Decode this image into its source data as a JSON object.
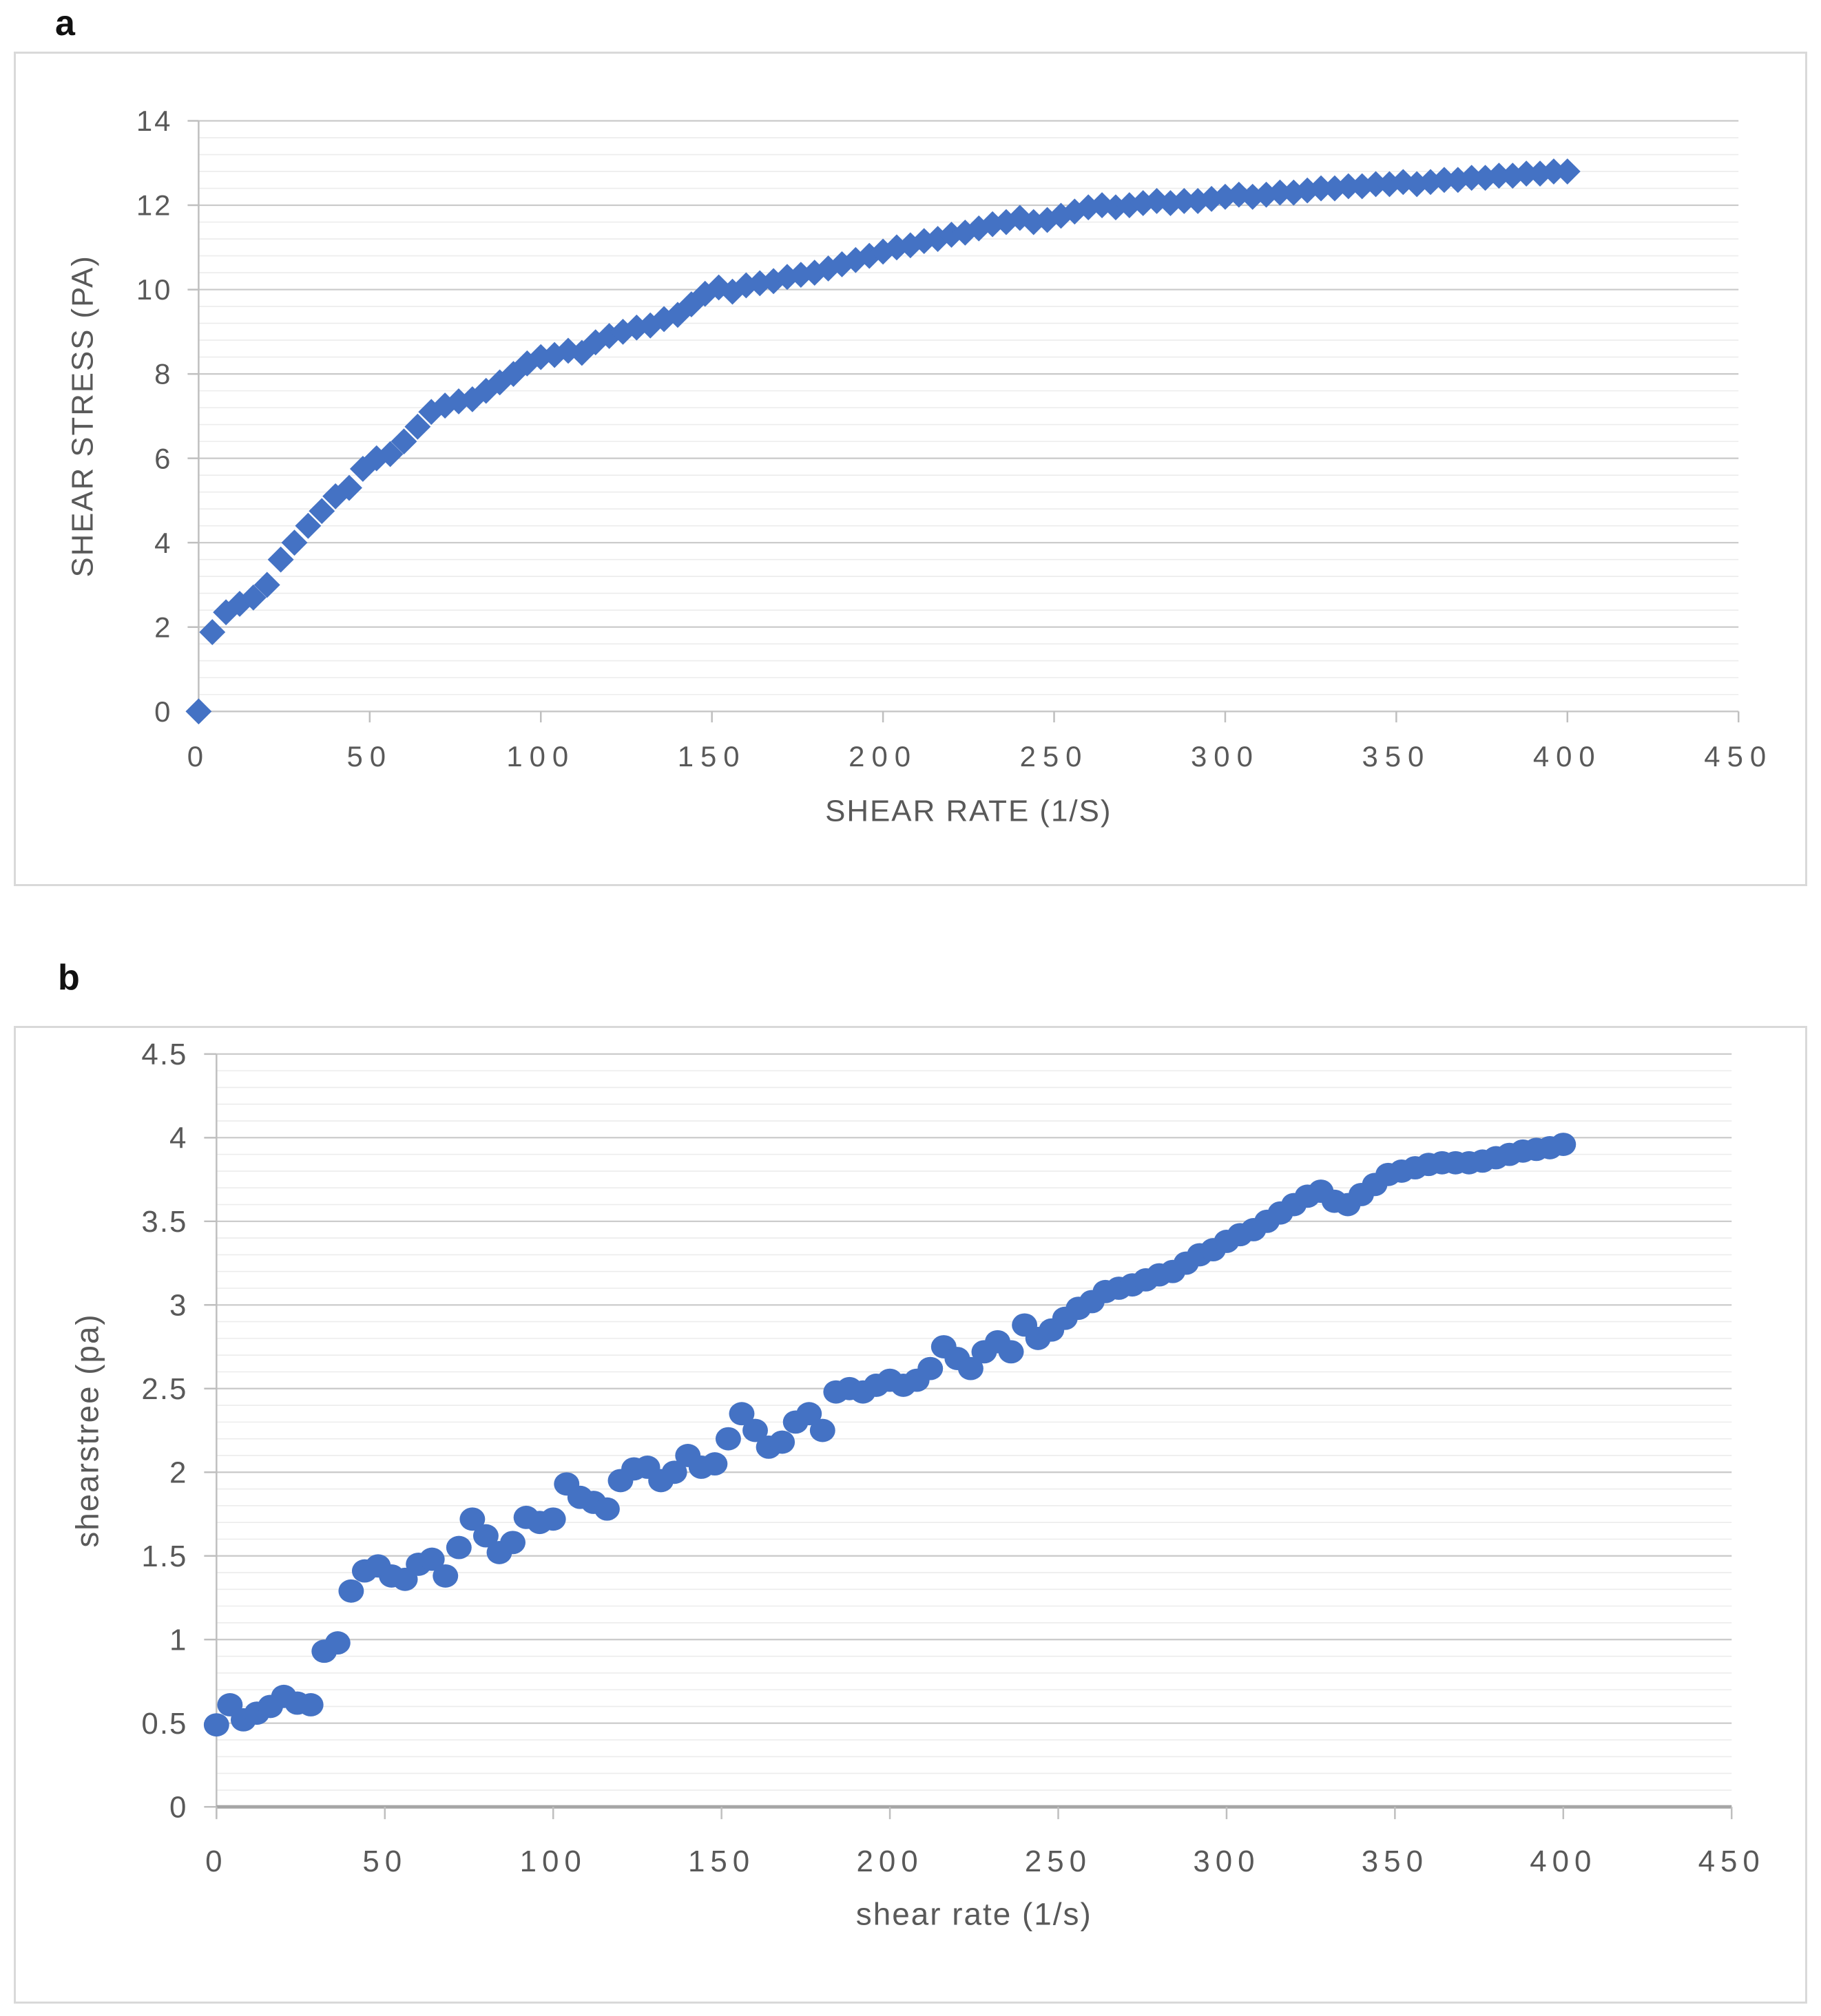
{
  "page": {
    "background": "#ffffff"
  },
  "figures": [
    {
      "panel_label": "a"
    },
    {
      "panel_label": "b"
    }
  ],
  "colors": {
    "marker_blue": "#4472C4",
    "grid_major": "#c9c9c9",
    "grid_minor": "#ececec",
    "axis_line": "#bfbfbf",
    "axis_line_dark": "#a6a6a6",
    "tick_text": "#595959",
    "panel_border": "#d9d9d9"
  },
  "chart_data": [
    {
      "type": "scatter",
      "title": "",
      "xlabel": "SHEAR RATE  (1/S)",
      "ylabel": "SHEAR STRESS (PA)",
      "legend": "none",
      "grid": "horizontal major + minor, no vertical",
      "marker": "diamond",
      "marker_color": "#4472C4",
      "xlim": [
        0,
        450
      ],
      "ylim": [
        0,
        14
      ],
      "x_tick_values": [
        0,
        50,
        100,
        150,
        200,
        250,
        300,
        350,
        400,
        450
      ],
      "x_tick_labels": [
        "0",
        "50",
        "100",
        "150",
        "200",
        "250",
        "300",
        "350",
        "400",
        "450"
      ],
      "y_tick_values": [
        0,
        2,
        4,
        6,
        8,
        10,
        12,
        14
      ],
      "y_tick_labels": [
        "0",
        "2",
        "4",
        "6",
        "8",
        "10",
        "12",
        "14"
      ],
      "y_major_step": 2,
      "y_minor_step": 0.4,
      "points": [
        [
          0,
          0
        ],
        [
          4,
          1.88
        ],
        [
          8,
          2.35
        ],
        [
          12,
          2.55
        ],
        [
          16,
          2.7
        ],
        [
          20,
          3.0
        ],
        [
          24,
          3.6
        ],
        [
          28,
          4.0
        ],
        [
          32,
          4.4
        ],
        [
          36,
          4.75
        ],
        [
          40,
          5.1
        ],
        [
          44,
          5.3
        ],
        [
          48,
          5.75
        ],
        [
          52,
          6.0
        ],
        [
          56,
          6.1
        ],
        [
          60,
          6.4
        ],
        [
          64,
          6.75
        ],
        [
          68,
          7.1
        ],
        [
          72,
          7.25
        ],
        [
          76,
          7.35
        ],
        [
          80,
          7.4
        ],
        [
          84,
          7.6
        ],
        [
          88,
          7.8
        ],
        [
          92,
          8.0
        ],
        [
          96,
          8.25
        ],
        [
          100,
          8.4
        ],
        [
          104,
          8.45
        ],
        [
          108,
          8.55
        ],
        [
          112,
          8.5
        ],
        [
          116,
          8.75
        ],
        [
          120,
          8.9
        ],
        [
          124,
          9.0
        ],
        [
          128,
          9.1
        ],
        [
          132,
          9.15
        ],
        [
          136,
          9.3
        ],
        [
          140,
          9.4
        ],
        [
          144,
          9.65
        ],
        [
          148,
          9.9
        ],
        [
          152,
          10.05
        ],
        [
          156,
          9.95
        ],
        [
          160,
          10.1
        ],
        [
          164,
          10.15
        ],
        [
          168,
          10.2
        ],
        [
          172,
          10.3
        ],
        [
          176,
          10.35
        ],
        [
          180,
          10.4
        ],
        [
          184,
          10.5
        ],
        [
          188,
          10.6
        ],
        [
          192,
          10.7
        ],
        [
          196,
          10.8
        ],
        [
          200,
          10.9
        ],
        [
          204,
          11.0
        ],
        [
          208,
          11.05
        ],
        [
          212,
          11.15
        ],
        [
          216,
          11.2
        ],
        [
          220,
          11.3
        ],
        [
          224,
          11.35
        ],
        [
          228,
          11.45
        ],
        [
          232,
          11.55
        ],
        [
          236,
          11.6
        ],
        [
          240,
          11.7
        ],
        [
          244,
          11.6
        ],
        [
          248,
          11.65
        ],
        [
          252,
          11.75
        ],
        [
          256,
          11.85
        ],
        [
          260,
          11.95
        ],
        [
          264,
          12.0
        ],
        [
          268,
          11.95
        ],
        [
          272,
          12.0
        ],
        [
          276,
          12.05
        ],
        [
          280,
          12.1
        ],
        [
          284,
          12.05
        ],
        [
          288,
          12.1
        ],
        [
          292,
          12.1
        ],
        [
          296,
          12.15
        ],
        [
          300,
          12.2
        ],
        [
          304,
          12.25
        ],
        [
          308,
          12.2
        ],
        [
          312,
          12.25
        ],
        [
          316,
          12.3
        ],
        [
          320,
          12.3
        ],
        [
          324,
          12.35
        ],
        [
          328,
          12.4
        ],
        [
          332,
          12.4
        ],
        [
          336,
          12.45
        ],
        [
          340,
          12.45
        ],
        [
          344,
          12.5
        ],
        [
          348,
          12.5
        ],
        [
          352,
          12.55
        ],
        [
          356,
          12.5
        ],
        [
          360,
          12.55
        ],
        [
          364,
          12.6
        ],
        [
          368,
          12.6
        ],
        [
          372,
          12.65
        ],
        [
          376,
          12.65
        ],
        [
          380,
          12.7
        ],
        [
          384,
          12.7
        ],
        [
          388,
          12.75
        ],
        [
          392,
          12.75
        ],
        [
          396,
          12.8
        ],
        [
          400,
          12.8
        ]
      ]
    },
    {
      "type": "scatter",
      "title": "",
      "xlabel": "shear rate (1/s)",
      "ylabel": "shearstree (pa)",
      "legend": "none",
      "grid": "horizontal major + minor, no vertical",
      "marker": "circle",
      "marker_color": "#4472C4",
      "xlim": [
        0,
        450
      ],
      "ylim": [
        0,
        4.5
      ],
      "x_tick_values": [
        0,
        50,
        100,
        150,
        200,
        250,
        300,
        350,
        400,
        450
      ],
      "x_tick_labels": [
        "0",
        "50",
        "100",
        "150",
        "200",
        "250",
        "300",
        "350",
        "400",
        "450"
      ],
      "y_tick_values": [
        0,
        0.5,
        1,
        1.5,
        2,
        2.5,
        3,
        3.5,
        4,
        4.5
      ],
      "y_tick_labels": [
        "0",
        "0.5",
        "1",
        "1.5",
        "2",
        "2.5",
        "3",
        "3.5",
        "4",
        "4.5"
      ],
      "y_major_step": 0.5,
      "y_minor_step": 0.1,
      "points": [
        [
          0,
          0.49
        ],
        [
          4,
          0.61
        ],
        [
          8,
          0.52
        ],
        [
          12,
          0.56
        ],
        [
          16,
          0.6
        ],
        [
          20,
          0.66
        ],
        [
          24,
          0.62
        ],
        [
          28,
          0.61
        ],
        [
          32,
          0.93
        ],
        [
          36,
          0.98
        ],
        [
          40,
          1.29
        ],
        [
          44,
          1.41
        ],
        [
          48,
          1.44
        ],
        [
          52,
          1.38
        ],
        [
          56,
          1.36
        ],
        [
          60,
          1.45
        ],
        [
          64,
          1.48
        ],
        [
          68,
          1.38
        ],
        [
          72,
          1.55
        ],
        [
          76,
          1.72
        ],
        [
          80,
          1.62
        ],
        [
          84,
          1.52
        ],
        [
          88,
          1.58
        ],
        [
          92,
          1.73
        ],
        [
          96,
          1.7
        ],
        [
          100,
          1.72
        ],
        [
          104,
          1.93
        ],
        [
          108,
          1.85
        ],
        [
          112,
          1.82
        ],
        [
          116,
          1.78
        ],
        [
          120,
          1.95
        ],
        [
          124,
          2.02
        ],
        [
          128,
          2.03
        ],
        [
          132,
          1.95
        ],
        [
          136,
          2.0
        ],
        [
          140,
          2.1
        ],
        [
          144,
          2.03
        ],
        [
          148,
          2.05
        ],
        [
          152,
          2.2
        ],
        [
          156,
          2.35
        ],
        [
          160,
          2.25
        ],
        [
          164,
          2.15
        ],
        [
          168,
          2.18
        ],
        [
          172,
          2.3
        ],
        [
          176,
          2.35
        ],
        [
          180,
          2.25
        ],
        [
          184,
          2.48
        ],
        [
          188,
          2.5
        ],
        [
          192,
          2.48
        ],
        [
          196,
          2.52
        ],
        [
          200,
          2.55
        ],
        [
          204,
          2.52
        ],
        [
          208,
          2.55
        ],
        [
          212,
          2.62
        ],
        [
          216,
          2.75
        ],
        [
          220,
          2.68
        ],
        [
          224,
          2.62
        ],
        [
          228,
          2.72
        ],
        [
          232,
          2.78
        ],
        [
          236,
          2.72
        ],
        [
          240,
          2.88
        ],
        [
          244,
          2.8
        ],
        [
          248,
          2.85
        ],
        [
          252,
          2.92
        ],
        [
          256,
          2.98
        ],
        [
          260,
          3.02
        ],
        [
          264,
          3.08
        ],
        [
          268,
          3.1
        ],
        [
          272,
          3.12
        ],
        [
          276,
          3.15
        ],
        [
          280,
          3.18
        ],
        [
          284,
          3.2
        ],
        [
          288,
          3.25
        ],
        [
          292,
          3.3
        ],
        [
          296,
          3.33
        ],
        [
          300,
          3.38
        ],
        [
          304,
          3.42
        ],
        [
          308,
          3.45
        ],
        [
          312,
          3.5
        ],
        [
          316,
          3.55
        ],
        [
          320,
          3.6
        ],
        [
          324,
          3.65
        ],
        [
          328,
          3.68
        ],
        [
          332,
          3.62
        ],
        [
          336,
          3.6
        ],
        [
          340,
          3.66
        ],
        [
          344,
          3.72
        ],
        [
          348,
          3.78
        ],
        [
          352,
          3.8
        ],
        [
          356,
          3.82
        ],
        [
          360,
          3.84
        ],
        [
          364,
          3.85
        ],
        [
          368,
          3.85
        ],
        [
          372,
          3.85
        ],
        [
          376,
          3.86
        ],
        [
          380,
          3.88
        ],
        [
          384,
          3.9
        ],
        [
          388,
          3.92
        ],
        [
          392,
          3.93
        ],
        [
          396,
          3.94
        ],
        [
          400,
          3.96
        ]
      ]
    }
  ]
}
